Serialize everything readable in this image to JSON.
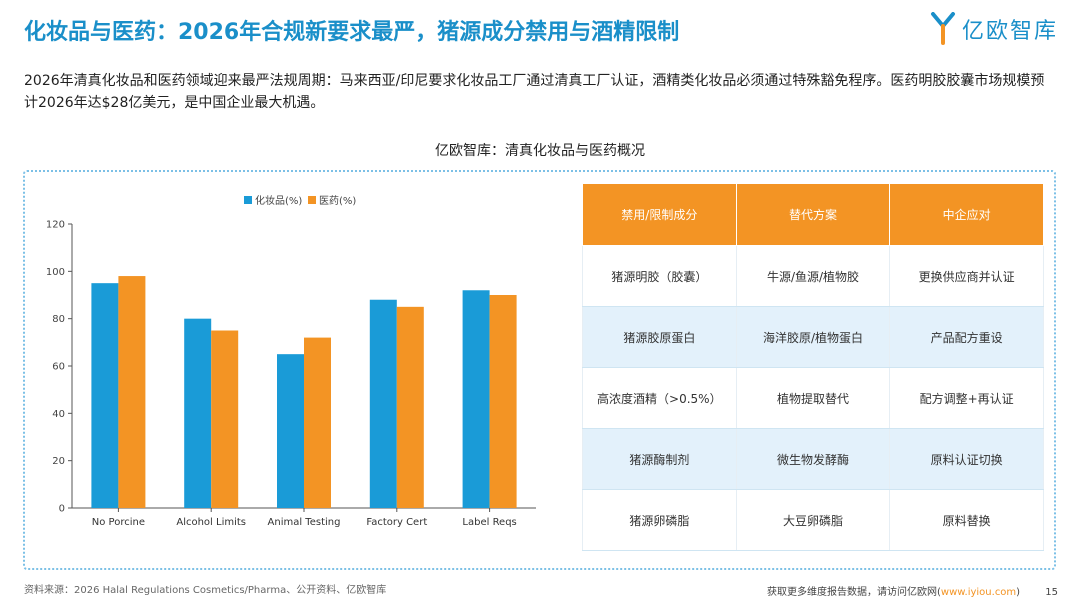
{
  "header": {
    "title": "化妆品与医药：2026年合规新要求最严，猪源成分禁用与酒精限制",
    "logo_text": "亿欧智库"
  },
  "description": "2026年清真化妆品和医药领域迎来最严法规周期：马来西亚/印尼要求化妆品工厂通过清真工厂认证，酒精类化妆品必须通过特殊豁免程序。医药明胶胶囊市场规模预计2026年达$28亿美元，是中国企业最大机遇。",
  "chart_heading": "亿欧智库：清真化妆品与医药概况",
  "chart_data": {
    "type": "bar",
    "categories": [
      "No Porcine",
      "Alcohol Limits",
      "Animal Testing",
      "Factory Cert",
      "Label Reqs"
    ],
    "series": [
      {
        "name": "化妆品(%)",
        "values": [
          95,
          80,
          65,
          88,
          92
        ],
        "color": "#1a9bd7"
      },
      {
        "name": "医药(%)",
        "values": [
          98,
          75,
          72,
          85,
          90
        ],
        "color": "#f39424"
      }
    ],
    "ylim": [
      0,
      120
    ],
    "yticks": [
      0,
      20,
      40,
      60,
      80,
      100,
      120
    ],
    "legend": "top-center",
    "grid": false
  },
  "table": {
    "headers": [
      "禁用/限制成分",
      "替代方案",
      "中企应对"
    ],
    "rows": [
      [
        "猪源明胶（胶囊）",
        "牛源/鱼源/植物胶",
        "更换供应商并认证"
      ],
      [
        "猪源胶原蛋白",
        "海洋胶原/植物蛋白",
        "产品配方重设"
      ],
      [
        "高浓度酒精（>0.5%）",
        "植物提取替代",
        "配方调整+再认证"
      ],
      [
        "猪源酶制剂",
        "微生物发酵酶",
        "原料认证切换"
      ],
      [
        "猪源卵磷脂",
        "大豆卵磷脂",
        "原料替换"
      ]
    ]
  },
  "footer": {
    "source": "资料来源：2026 Halal Regulations Cosmetics/Pharma、公开资料、亿欧智库",
    "right_text": "获取更多维度报告数据，请访问亿欧网(",
    "link": "www.iyiou.com",
    "right_close": ")",
    "page": "15"
  }
}
